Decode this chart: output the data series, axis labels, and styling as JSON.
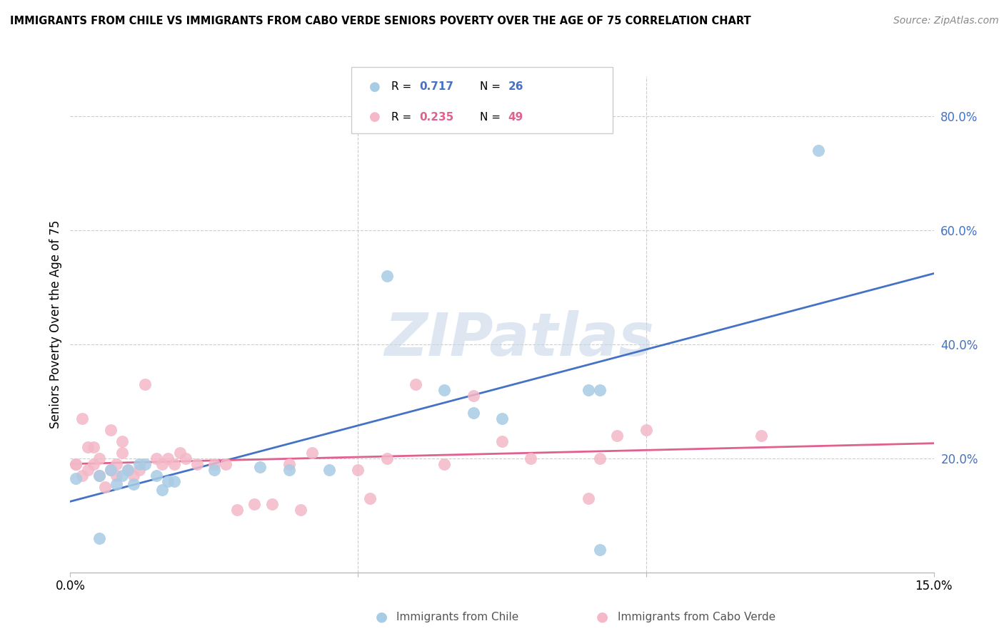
{
  "title": "IMMIGRANTS FROM CHILE VS IMMIGRANTS FROM CABO VERDE SENIORS POVERTY OVER THE AGE OF 75 CORRELATION CHART",
  "source": "Source: ZipAtlas.com",
  "ylabel": "Seniors Poverty Over the Age of 75",
  "xlim": [
    0.0,
    0.15
  ],
  "ylim": [
    0.0,
    0.87
  ],
  "ytick_vals_right": [
    0.2,
    0.4,
    0.6,
    0.8
  ],
  "ytick_labels_right": [
    "20.0%",
    "40.0%",
    "60.0%",
    "80.0%"
  ],
  "chile_R": 0.717,
  "chile_N": 26,
  "cabo_R": 0.235,
  "cabo_N": 49,
  "chile_color": "#a8cce4",
  "cabo_color": "#f4b8c8",
  "chile_line_color": "#4472c4",
  "cabo_line_color": "#e06090",
  "watermark_text": "ZIPatlas",
  "watermark_color": "#c8d8e8",
  "chile_x": [
    0.001,
    0.005,
    0.007,
    0.008,
    0.009,
    0.01,
    0.011,
    0.012,
    0.013,
    0.015,
    0.016,
    0.017,
    0.018,
    0.025,
    0.033,
    0.038,
    0.045,
    0.055,
    0.065,
    0.07,
    0.075,
    0.09,
    0.092,
    0.13,
    0.092,
    0.005
  ],
  "chile_y": [
    0.165,
    0.17,
    0.18,
    0.155,
    0.17,
    0.18,
    0.155,
    0.19,
    0.19,
    0.17,
    0.145,
    0.16,
    0.16,
    0.18,
    0.185,
    0.18,
    0.18,
    0.52,
    0.32,
    0.28,
    0.27,
    0.32,
    0.32,
    0.74,
    0.04,
    0.06
  ],
  "cabo_x": [
    0.001,
    0.002,
    0.002,
    0.003,
    0.003,
    0.004,
    0.004,
    0.005,
    0.005,
    0.006,
    0.007,
    0.007,
    0.008,
    0.008,
    0.009,
    0.009,
    0.01,
    0.011,
    0.012,
    0.013,
    0.015,
    0.016,
    0.017,
    0.018,
    0.019,
    0.02,
    0.022,
    0.025,
    0.027,
    0.029,
    0.032,
    0.035,
    0.038,
    0.04,
    0.042,
    0.05,
    0.052,
    0.055,
    0.06,
    0.065,
    0.07,
    0.075,
    0.08,
    0.09,
    0.092,
    0.095,
    0.1,
    0.12,
    0.001
  ],
  "cabo_y": [
    0.19,
    0.17,
    0.27,
    0.18,
    0.22,
    0.19,
    0.22,
    0.17,
    0.2,
    0.15,
    0.18,
    0.25,
    0.17,
    0.19,
    0.21,
    0.23,
    0.18,
    0.17,
    0.18,
    0.33,
    0.2,
    0.19,
    0.2,
    0.19,
    0.21,
    0.2,
    0.19,
    0.19,
    0.19,
    0.11,
    0.12,
    0.12,
    0.19,
    0.11,
    0.21,
    0.18,
    0.13,
    0.2,
    0.33,
    0.19,
    0.31,
    0.23,
    0.2,
    0.13,
    0.2,
    0.24,
    0.25,
    0.24,
    0.19
  ]
}
